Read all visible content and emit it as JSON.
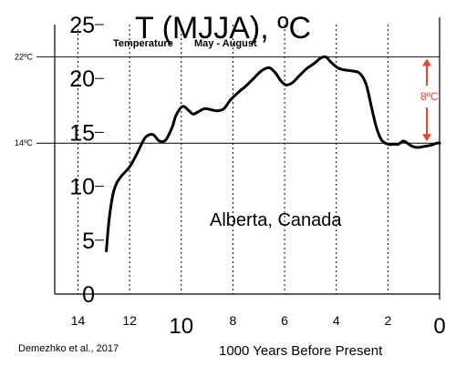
{
  "chart_data": {
    "type": "line",
    "title": "T (MJJA), ºC",
    "subtitle_left": "Temperature",
    "subtitle_right": "May - August",
    "xlabel": "1000 Years Before Present",
    "ylabel": "",
    "xlim": [
      14.9,
      0
    ],
    "ylim": [
      0,
      25
    ],
    "x_ticks": [
      {
        "value": 14,
        "label": "14"
      },
      {
        "value": 12,
        "label": "12"
      },
      {
        "value": 10,
        "label": "10"
      },
      {
        "value": 8,
        "label": "8"
      },
      {
        "value": 6,
        "label": "6"
      },
      {
        "value": 4,
        "label": "4"
      },
      {
        "value": 2,
        "label": "2"
      },
      {
        "value": 0,
        "label": "0"
      }
    ],
    "x_gridlines": [
      14,
      12,
      10,
      8,
      6,
      4,
      2
    ],
    "y_ticks": [
      {
        "value": 0,
        "label": "0"
      },
      {
        "value": 5,
        "label": "5"
      },
      {
        "value": 10,
        "label": "10"
      },
      {
        "value": 15,
        "label": "15"
      },
      {
        "value": 20,
        "label": "20"
      },
      {
        "value": 25,
        "label": "25"
      }
    ],
    "reference_lines": [
      {
        "value": 22,
        "label": "22ºC"
      },
      {
        "value": 14,
        "label": "14ºC"
      }
    ],
    "annotations": {
      "location": "Alberta, Canada",
      "delta": "8ºC",
      "source": "Demezhko et al., 2017"
    },
    "series": [
      {
        "name": "",
        "color": "#000000",
        "x": [
          12.9,
          12.8,
          12.65,
          12.5,
          12.3,
          12.0,
          11.7,
          11.4,
          11.1,
          10.85,
          10.6,
          10.35,
          10.2,
          9.95,
          9.7,
          9.55,
          9.35,
          9.1,
          8.85,
          8.6,
          8.35,
          8.1,
          7.8,
          7.5,
          7.2,
          6.9,
          6.6,
          6.35,
          6.15,
          5.95,
          5.7,
          5.45,
          5.15,
          4.85,
          4.6,
          4.4,
          4.2,
          3.95,
          3.7,
          3.4,
          3.1,
          2.85,
          2.65,
          2.45,
          2.25,
          2.0,
          1.8,
          1.6,
          1.4,
          1.25,
          1.05,
          0.85,
          0.6,
          0.35,
          0.1,
          0.0
        ],
        "y": [
          4.0,
          6.8,
          9.2,
          10.3,
          11.0,
          11.8,
          13.1,
          14.5,
          14.8,
          14.2,
          14.3,
          15.5,
          16.6,
          17.4,
          17.0,
          16.7,
          16.9,
          17.2,
          17.1,
          17.0,
          17.2,
          18.0,
          18.7,
          19.3,
          20.0,
          20.7,
          21.0,
          20.5,
          19.8,
          19.4,
          19.6,
          20.2,
          20.9,
          21.4,
          21.9,
          22.0,
          21.5,
          21.0,
          20.8,
          20.7,
          20.5,
          19.5,
          17.5,
          15.5,
          14.3,
          13.9,
          13.9,
          13.9,
          14.2,
          14.0,
          13.7,
          13.6,
          13.7,
          13.8,
          14.0,
          14.0
        ]
      }
    ]
  }
}
